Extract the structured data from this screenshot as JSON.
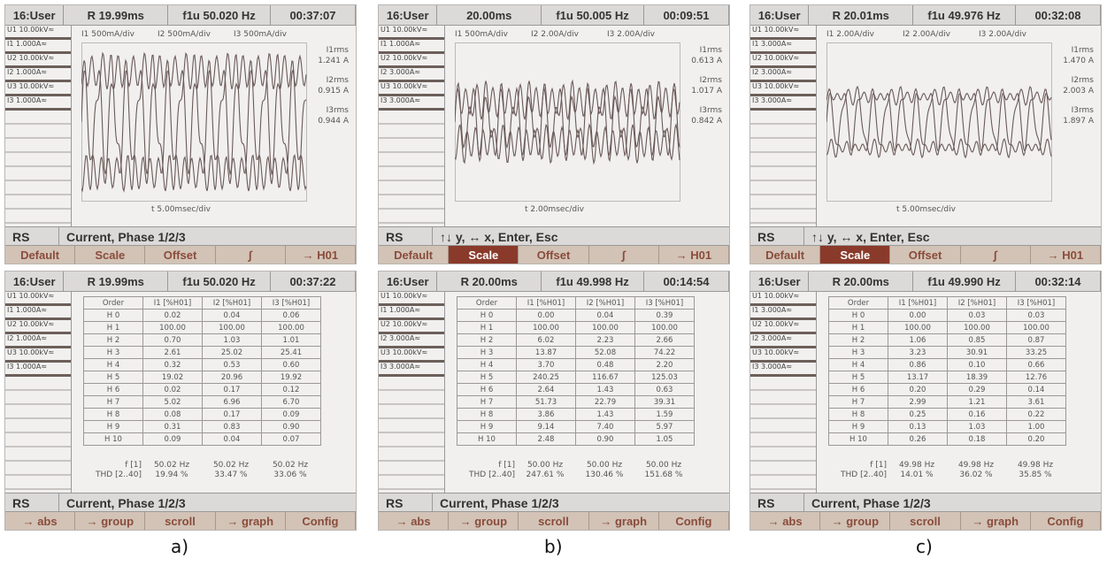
{
  "panels": [
    {
      "label": "a)",
      "scope": {
        "header": [
          "16:User",
          "R 19.99ms",
          "f1u 50.020 Hz",
          "00:37:07"
        ],
        "channels": [
          "U1 10.00kV≈",
          "I1 1.000A≈",
          "U2 10.00kV≈",
          "I2 1.000A≈",
          "U3 10.00kV≈",
          "I3 1.000A≈"
        ],
        "scales": [
          "I1 500mA/div",
          "I2 500mA/div",
          "I3 500mA/div"
        ],
        "rms": [
          {
            "name": "I1rms",
            "value": "1.241 A"
          },
          {
            "name": "I2rms",
            "value": "0.915 A"
          },
          {
            "name": "I3rms",
            "value": "0.944 A"
          }
        ],
        "time_div": "t 5.00msec/div",
        "status": [
          "RS",
          "Current, Phase 1/2/3"
        ],
        "softkeys": [
          "Default",
          "Scale",
          "Offset",
          "∫",
          "→ H01"
        ]
      },
      "harmonics": {
        "header": [
          "16:User",
          "R 19.99ms",
          "f1u 50.020 Hz",
          "00:37:22"
        ],
        "channels": [
          "U1 10.00kV≈",
          "I1 1.000A≈",
          "U2 10.00kV≈",
          "I2 1.000A≈",
          "U3 10.00kV≈",
          "I3 1.000A≈"
        ],
        "columns": [
          "Order",
          "I1 [%H01]",
          "I2 [%H01]",
          "I3 [%H01]"
        ],
        "rows": [
          [
            "H 0",
            "0.02",
            "0.04",
            "0.06"
          ],
          [
            "H 1",
            "100.00",
            "100.00",
            "100.00"
          ],
          [
            "H 2",
            "0.70",
            "1.03",
            "1.01"
          ],
          [
            "H 3",
            "2.61",
            "25.02",
            "25.41"
          ],
          [
            "H 4",
            "0.32",
            "0.53",
            "0.60"
          ],
          [
            "H 5",
            "19.02",
            "20.96",
            "19.92"
          ],
          [
            "H 6",
            "0.02",
            "0.17",
            "0.12"
          ],
          [
            "H 7",
            "5.02",
            "6.96",
            "6.70"
          ],
          [
            "H 8",
            "0.08",
            "0.17",
            "0.09"
          ],
          [
            "H 9",
            "0.31",
            "0.83",
            "0.90"
          ],
          [
            "H 10",
            "0.09",
            "0.04",
            "0.07"
          ]
        ],
        "footer": [
          [
            "f [1]",
            "50.02 Hz",
            "50.02 Hz",
            "50.02 Hz"
          ],
          [
            "THD [2..40]",
            "19.94 %",
            "33.47 %",
            "33.06 %"
          ]
        ],
        "status": [
          "RS",
          "Current, Phase 1/2/3"
        ],
        "softkeys": [
          "→ abs",
          "→ group",
          "scroll",
          "→ graph",
          "Config"
        ]
      }
    },
    {
      "label": "b)",
      "scope": {
        "header": [
          "16:User",
          "20.00ms",
          "f1u 50.005 Hz",
          "00:09:51"
        ],
        "channels": [
          "U1 10.00kV≈",
          "I1 1.000A≈",
          "U2 10.00kV≈",
          "I2 3.000A≈",
          "U3 10.00kV≈",
          "I3 3.000A≈"
        ],
        "scales": [
          "I1 500mA/div",
          "I2 2.00A/div",
          "I3 2.00A/div"
        ],
        "rms": [
          {
            "name": "I1rms",
            "value": "0.613 A"
          },
          {
            "name": "I2rms",
            "value": "1.017 A"
          },
          {
            "name": "I3rms",
            "value": "0.842 A"
          }
        ],
        "time_div": "t 2.00msec/div",
        "status": [
          "RS",
          "↑↓ y, ↔ x, Enter, Esc"
        ],
        "softkeys": [
          "Default",
          "Scale",
          "Offset",
          "∫",
          "→ H01"
        ],
        "active_softkey": 1
      },
      "harmonics": {
        "header": [
          "16:User",
          "R 20.00ms",
          "f1u 49.998 Hz",
          "00:14:54"
        ],
        "channels": [
          "U1 10.00kV≈",
          "I1 1.000A≈",
          "U2 10.00kV≈",
          "I2 3.000A≈",
          "U3 10.00kV≈",
          "I3 3.000A≈"
        ],
        "columns": [
          "Order",
          "I1 [%H01]",
          "I2 [%H01]",
          "I3 [%H01]"
        ],
        "rows": [
          [
            "H 0",
            "0.00",
            "0.04",
            "0.39"
          ],
          [
            "H 1",
            "100.00",
            "100.00",
            "100.00"
          ],
          [
            "H 2",
            "6.02",
            "2.23",
            "2.66"
          ],
          [
            "H 3",
            "13.87",
            "52.08",
            "74.22"
          ],
          [
            "H 4",
            "3.70",
            "0.48",
            "2.20"
          ],
          [
            "H 5",
            "240.25",
            "116.67",
            "125.03"
          ],
          [
            "H 6",
            "2.64",
            "1.43",
            "0.63"
          ],
          [
            "H 7",
            "51.73",
            "22.79",
            "39.31"
          ],
          [
            "H 8",
            "3.86",
            "1.43",
            "1.59"
          ],
          [
            "H 9",
            "9.14",
            "7.40",
            "5.97"
          ],
          [
            "H 10",
            "2.48",
            "0.90",
            "1.05"
          ]
        ],
        "footer": [
          [
            "f [1]",
            "50.00 Hz",
            "50.00 Hz",
            "50.00 Hz"
          ],
          [
            "THD [2..40]",
            "247.61 %",
            "130.46 %",
            "151.68 %"
          ]
        ],
        "status": [
          "RS",
          "Current, Phase 1/2/3"
        ],
        "softkeys": [
          "→ abs",
          "→ group",
          "scroll",
          "→ graph",
          "Config"
        ]
      }
    },
    {
      "label": "c)",
      "scope": {
        "header": [
          "16:User",
          "R 20.01ms",
          "f1u 49.976 Hz",
          "00:32:08"
        ],
        "channels": [
          "U1 10.00kV≈",
          "I1 3.000A≈",
          "U2 10.00kV≈",
          "I2 3.000A≈",
          "U3 10.00kV≈",
          "I3 3.000A≈"
        ],
        "scales": [
          "I1 2.00A/div",
          "I2 2.00A/div",
          "I3 2.00A/div"
        ],
        "rms": [
          {
            "name": "I1rms",
            "value": "1.470 A"
          },
          {
            "name": "I2rms",
            "value": "2.003 A"
          },
          {
            "name": "I3rms",
            "value": "1.897 A"
          }
        ],
        "time_div": "t 5.00msec/div",
        "status": [
          "RS",
          "↑↓ y, ↔ x, Enter, Esc"
        ],
        "softkeys": [
          "Default",
          "Scale",
          "Offset",
          "∫",
          "→ H01"
        ],
        "active_softkey": 1
      },
      "harmonics": {
        "header": [
          "16:User",
          "R 20.00ms",
          "f1u 49.990 Hz",
          "00:32:14"
        ],
        "channels": [
          "U1 10.00kV≈",
          "I1 3.000A≈",
          "U2 10.00kV≈",
          "I2 3.000A≈",
          "U3 10.00kV≈",
          "I3 3.000A≈"
        ],
        "columns": [
          "Order",
          "I1 [%H01]",
          "I2 [%H01]",
          "I3 [%H01]"
        ],
        "rows": [
          [
            "H 0",
            "0.00",
            "0.03",
            "0.03"
          ],
          [
            "H 1",
            "100.00",
            "100.00",
            "100.00"
          ],
          [
            "H 2",
            "1.06",
            "0.85",
            "0.87"
          ],
          [
            "H 3",
            "3.23",
            "30.91",
            "33.25"
          ],
          [
            "H 4",
            "0.86",
            "0.10",
            "0.66"
          ],
          [
            "H 5",
            "13.17",
            "18.39",
            "12.76"
          ],
          [
            "H 6",
            "0.20",
            "0.29",
            "0.14"
          ],
          [
            "H 7",
            "2.99",
            "1.21",
            "3.61"
          ],
          [
            "H 8",
            "0.25",
            "0.16",
            "0.22"
          ],
          [
            "H 9",
            "0.13",
            "1.03",
            "1.00"
          ],
          [
            "H 10",
            "0.26",
            "0.18",
            "0.20"
          ]
        ],
        "footer": [
          [
            "f [1]",
            "49.98 Hz",
            "49.98 Hz",
            "49.98 Hz"
          ],
          [
            "THD [2..40]",
            "14.01 %",
            "36.02 %",
            "35.85 %"
          ]
        ],
        "status": [
          "RS",
          "Current, Phase 1/2/3"
        ],
        "softkeys": [
          "→ abs",
          "→ group",
          "scroll",
          "→ graph",
          "Config"
        ]
      }
    }
  ]
}
